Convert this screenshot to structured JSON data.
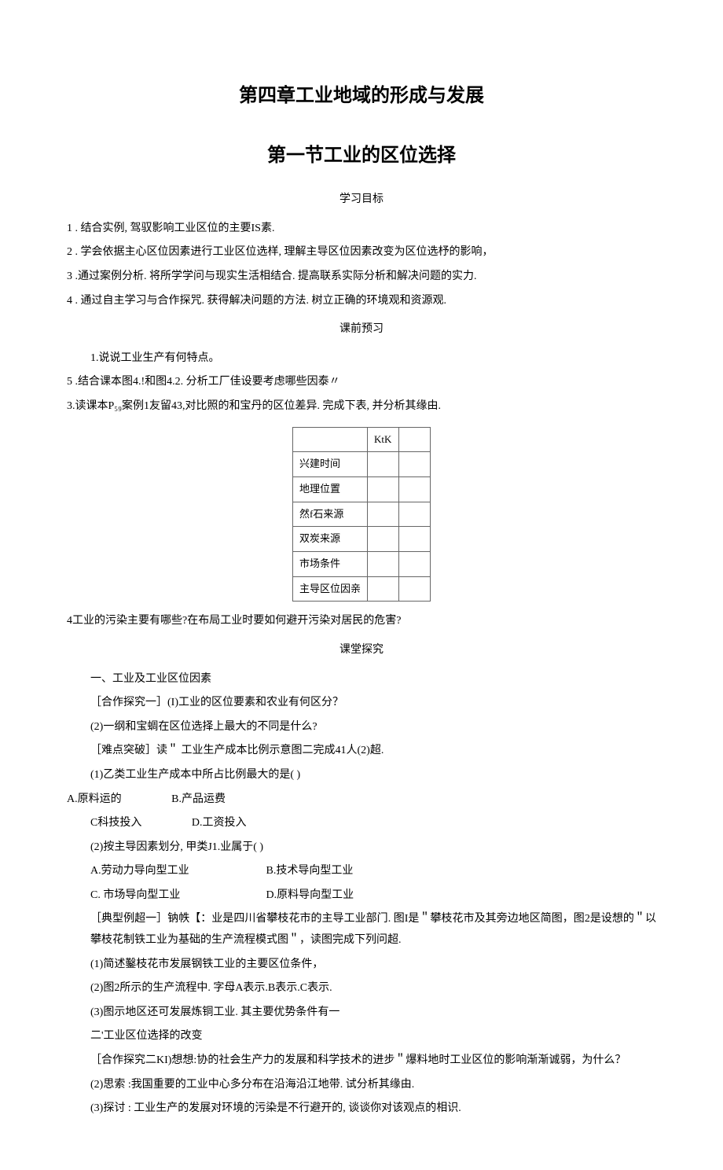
{
  "title": "第四章工业地域的形成与发展",
  "subtitle": "第一节工业的区位选择",
  "section_labels": {
    "goals": "学习目标",
    "preview": "课前预习",
    "explore": "课堂探究"
  },
  "goals": [
    "1 . 结合实例, 驾驭影响工业区位的主要IS素.",
    "2 . 学会依据主心区位因素进行工业区位选样, 理解主导区位因素改变为区位选杼的影响，",
    "3  .通过案例分析. 将所学学问与现实生活相结合. 提高联系实际分析和解决问题的实力.",
    "4 . 通过自主学习与合作探咒. 获得解决问题的方法. 树立正确的环境观和资源观."
  ],
  "preview": {
    "item1": "1.说说工业生产有何特点。",
    "item5": "5  .结合课本图4.!和图4.2. 分析工厂佳设要考虑哪些因泰〃",
    "item3": "3.读课本P₅₉案例1友留43,对比照的和宝丹的区位差异. 完成下表, 并分析其缘由.",
    "item4": "4工业的污染主要有哪些?在布局工业时要如何避开污染对居民的危害?"
  },
  "table": {
    "header_col2": "KtK",
    "rows": [
      "兴建时间",
      "地理位置",
      "然f石来源",
      "双炭来源",
      "市场条件",
      "主导区位因亲"
    ]
  },
  "explore": {
    "heading1": "一、工业及工业区位因素",
    "q1": "［合作探究一］(I)工业的区位要素和农业有何区分？",
    "q1_2": "(2)一纲和宝蜩在区位选择上最大的不同是什么?",
    "hard": "［难点突破］读＂ 工业生产成本比例示意图二完成41人(2)超.",
    "hard_q1": "(1)乙类工业生产成本中所占比例最大的是( )",
    "hard_q1_optA": "A.原料运的",
    "hard_q1_optB": "B.产品运费",
    "hard_q1_optC": "C科技投入",
    "hard_q1_optD": "D.工资投入",
    "hard_q2": "(2)按主导因素划分, 甲类J1.业属于( )",
    "hard_q2_optA": "A.劳动力导向型工业",
    "hard_q2_optB": "B.技术导向型工业",
    "hard_q2_optC": "C. 市场导向型工业",
    "hard_q2_optD": "D.原料导向型工业",
    "example": "［典型例超一］钠帙【：业是四川省攀枝花市的主导工业部门. 图I是＂攀枝花市及其旁边地区简图，图2是设想的＂以攀枝花制铁工业为基础的生产流程模式图＂，读图完成下列问超.",
    "ex_q1": "(1)简述鑿枝花市发展钢铁工业的主要区位条件，",
    "ex_q2": "(2)图2所示的生产流程中. 字母A表示.B表示.C表示.",
    "ex_q3": "(3)图示地区还可发展炼铜工业. 其主要优势条件有一",
    "heading2": "二'工业区位选择的改变",
    "coop2": "［合作探究二KI)想想:协的社会生产力的发展和科学技术的进步＂爆料地时工业区位的影响渐渐诚弱，为什么？",
    "coop2_q2": "(2)思索 :我国重要的工业中心多分布在沿海沿江地带. 试分析其缘由.",
    "coop2_q3": "(3)探讨 : 工业生产的发展对环境的污染是不行避开的, 谈谈你对该观点的相识."
  },
  "colors": {
    "text": "#000000",
    "background": "#ffffff",
    "table_border": "#666666"
  },
  "typography": {
    "title_size": 24,
    "body_size": 14,
    "table_size": 13,
    "font_family": "SimSun"
  }
}
